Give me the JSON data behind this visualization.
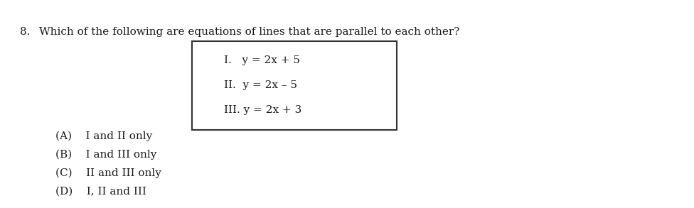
{
  "question_number": "8.",
  "question_text": "Which of the following are equations of lines that are parallel to each other?",
  "box_lines": [
    "I.   y = 2x + 5",
    "II.  y = 2x – 5",
    "III. y = 2x + 3"
  ],
  "options": [
    "(A)    I and II only",
    "(B)    I and III only",
    "(C)    II and III only",
    "(D)    I, II and III"
  ],
  "bg_color": "#ffffff",
  "text_color": "#1a1a1a",
  "font_size_question": 11,
  "font_size_box": 11,
  "font_size_options": 11
}
